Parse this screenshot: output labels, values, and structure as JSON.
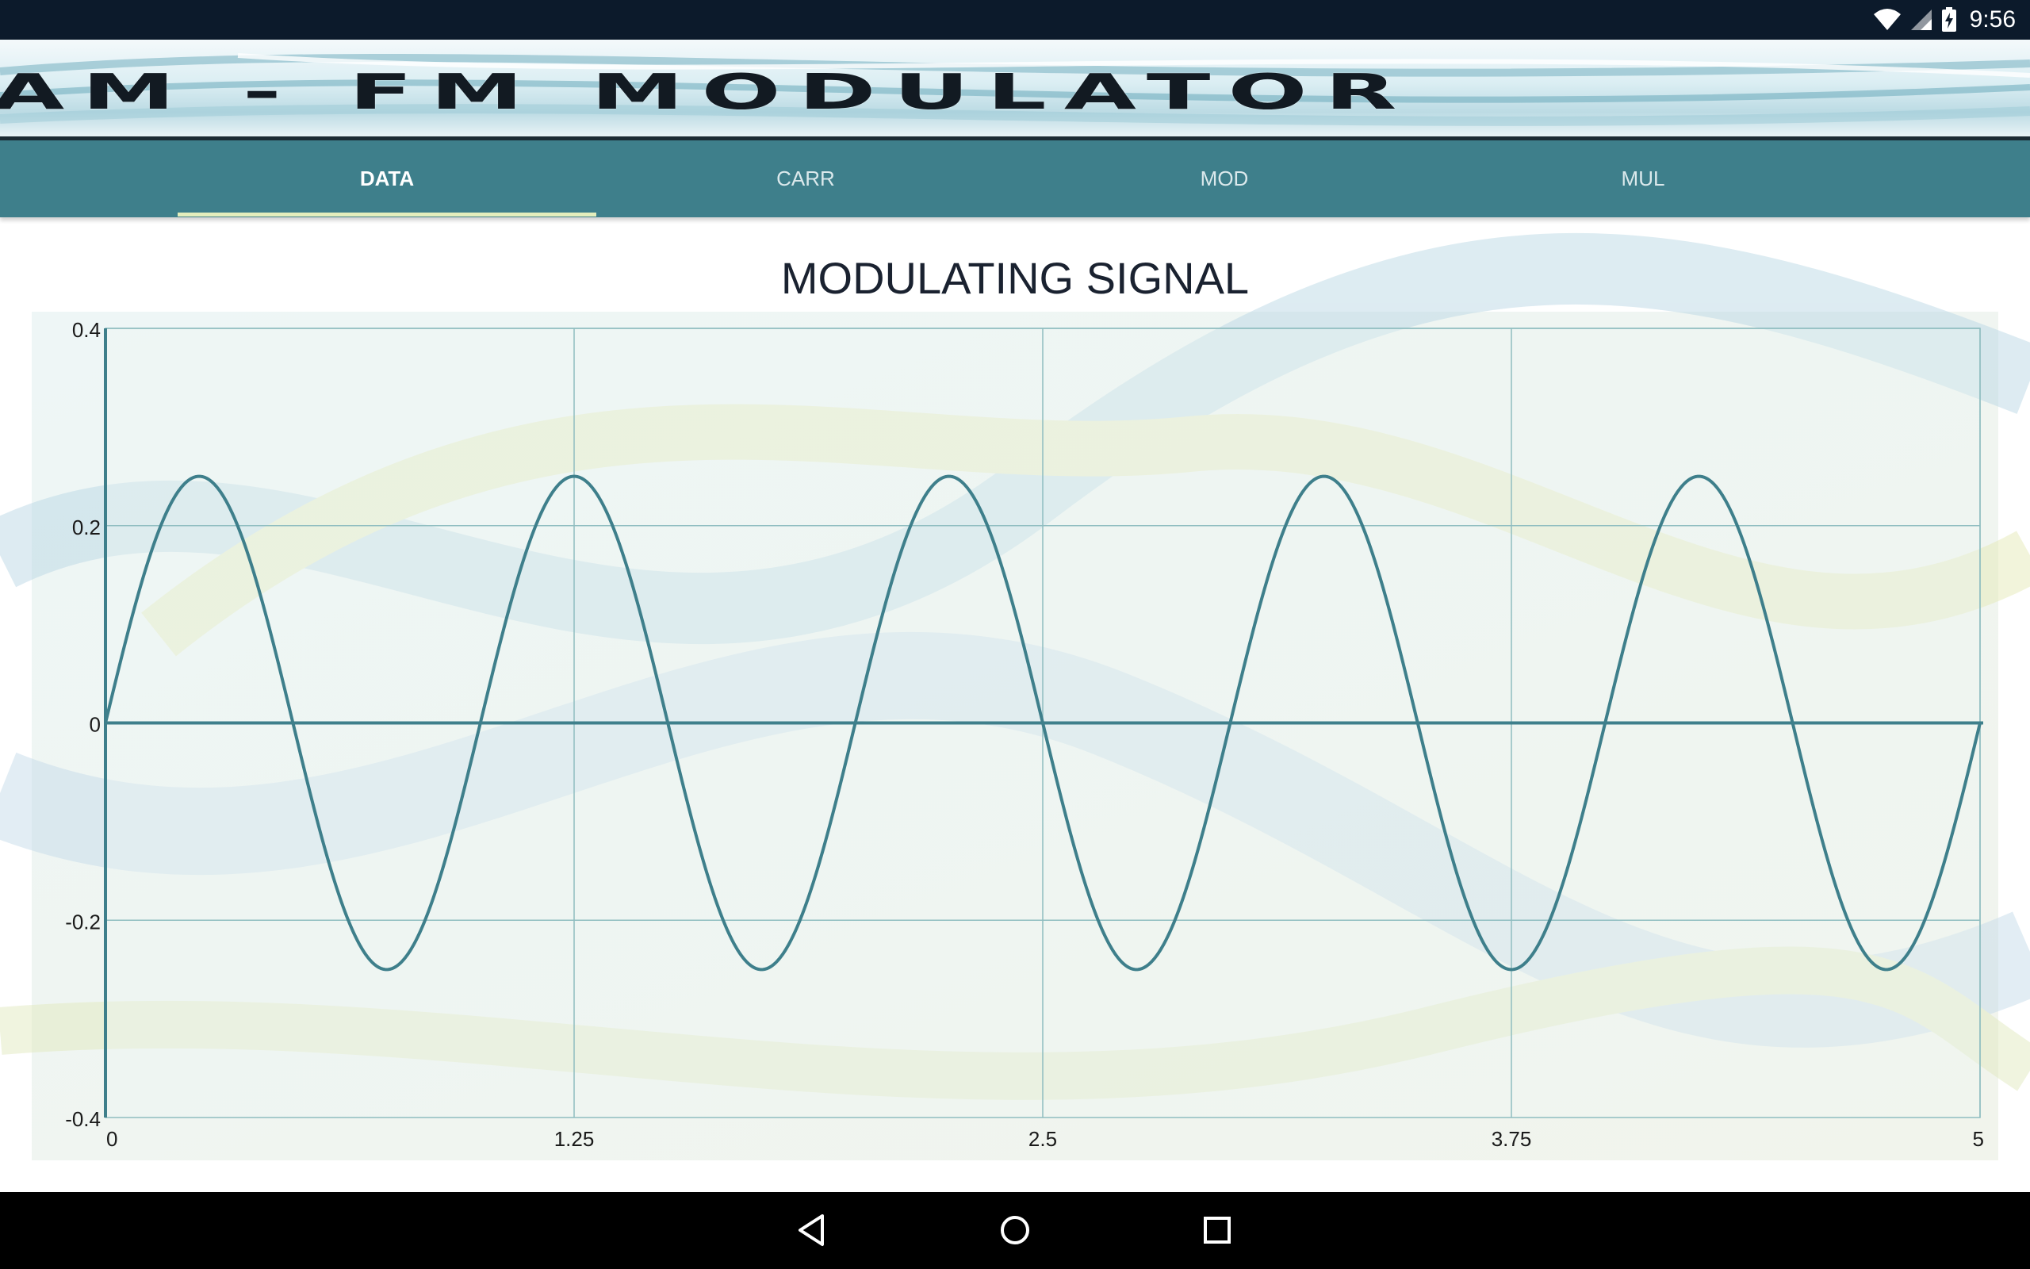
{
  "status_bar": {
    "time": "9:56",
    "icons": [
      "wifi-icon",
      "cell-signal-icon",
      "battery-charging-icon"
    ]
  },
  "banner": {
    "title": "AM - FM MODULATOR"
  },
  "tabs": [
    {
      "label": "DATA",
      "active": true
    },
    {
      "label": "CARR",
      "active": false
    },
    {
      "label": "MOD",
      "active": false
    },
    {
      "label": "MUL",
      "active": false
    }
  ],
  "colors": {
    "status_bar": "#0c1a2b",
    "tab_bar": "#3e7f8b",
    "tab_indicator": "#e4eebc",
    "series_line": "#3e7f8b",
    "grid": "#8fbdc0",
    "plot_background": "#eef5f4"
  },
  "chart_data": {
    "type": "line",
    "title": "MODULATING SIGNAL",
    "xlabel": "",
    "ylabel": "",
    "xlim": [
      0,
      5
    ],
    "ylim": [
      -0.4,
      0.4
    ],
    "x_ticks": [
      "0",
      "1.25",
      "2.5",
      "3.75",
      "5"
    ],
    "y_ticks": [
      "0.4",
      "0.2",
      "0",
      "-0.2",
      "-0.4"
    ],
    "grid": true,
    "legend": "none",
    "series": [
      {
        "function": "sine",
        "amplitude": 0.25,
        "cycles_in_range": 5,
        "x": [
          0,
          0.25,
          0.5,
          0.75,
          1.0,
          1.25,
          1.5,
          1.75,
          2.0,
          2.25,
          2.5,
          2.75,
          3.0,
          3.25,
          3.5,
          3.75,
          4.0,
          4.25,
          4.5,
          4.75,
          5.0
        ],
        "y": [
          0,
          0.25,
          0,
          -0.25,
          0,
          0.25,
          0,
          -0.25,
          0,
          0.25,
          0,
          -0.25,
          0,
          0.25,
          0,
          -0.25,
          0,
          0.25,
          0,
          -0.25,
          0
        ]
      }
    ]
  },
  "nav_bar": {
    "buttons": [
      "back-icon",
      "home-icon",
      "recents-icon"
    ]
  }
}
